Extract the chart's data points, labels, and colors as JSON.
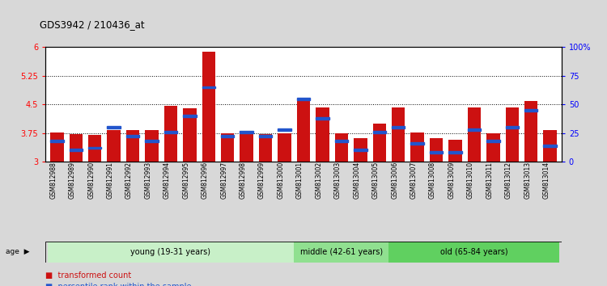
{
  "title": "GDS3942 / 210436_at",
  "samples": [
    "GSM812988",
    "GSM812989",
    "GSM812990",
    "GSM812991",
    "GSM812992",
    "GSM812993",
    "GSM812994",
    "GSM812995",
    "GSM812996",
    "GSM812997",
    "GSM812998",
    "GSM812999",
    "GSM813000",
    "GSM813001",
    "GSM813002",
    "GSM813003",
    "GSM813004",
    "GSM813005",
    "GSM813006",
    "GSM813007",
    "GSM813008",
    "GSM813009",
    "GSM813010",
    "GSM813011",
    "GSM813012",
    "GSM813013",
    "GSM813014"
  ],
  "transformed_count": [
    3.76,
    3.72,
    3.7,
    3.82,
    3.82,
    3.83,
    4.46,
    4.4,
    5.88,
    3.75,
    3.8,
    3.72,
    3.74,
    4.65,
    4.42,
    3.75,
    3.62,
    4.0,
    4.42,
    3.77,
    3.62,
    3.58,
    4.42,
    3.75,
    4.42,
    4.58,
    3.83
  ],
  "percentile_rank": [
    18,
    10,
    12,
    30,
    22,
    18,
    26,
    40,
    65,
    22,
    26,
    22,
    28,
    55,
    38,
    18,
    10,
    26,
    30,
    16,
    8,
    8,
    28,
    18,
    30,
    45,
    14
  ],
  "groups": [
    {
      "label": "young (19-31 years)",
      "start": 0,
      "end": 13,
      "color": "#c8f0c8"
    },
    {
      "label": "middle (42-61 years)",
      "start": 13,
      "end": 18,
      "color": "#90e090"
    },
    {
      "label": "old (65-84 years)",
      "start": 18,
      "end": 27,
      "color": "#60d060"
    }
  ],
  "ymin": 3.0,
  "ymax": 6.0,
  "yticks": [
    3.0,
    3.75,
    4.5,
    5.25,
    6.0
  ],
  "ytick_labels": [
    "3",
    "3.75",
    "4.5",
    "5.25",
    "6"
  ],
  "right_yticks": [
    0,
    25,
    50,
    75,
    100
  ],
  "right_ytick_labels": [
    "0",
    "25",
    "50",
    "75",
    "100%"
  ],
  "bar_color": "#cc1111",
  "blue_color": "#2255cc",
  "plot_bg": "#ffffff",
  "bar_width": 0.7
}
